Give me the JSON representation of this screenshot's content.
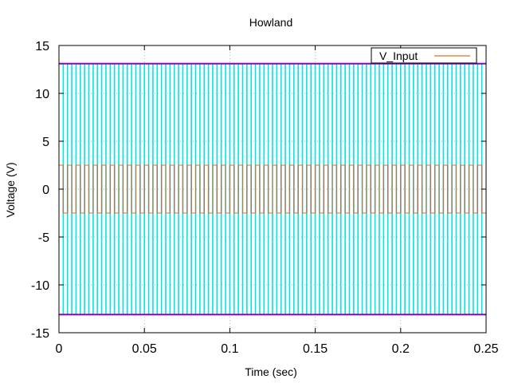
{
  "chart_data": {
    "type": "line",
    "title": "Howland",
    "xlabel": "Time (sec)",
    "ylabel": "Voltage (V)",
    "xlim": [
      0,
      0.25
    ],
    "ylim": [
      -15,
      15
    ],
    "xticks": [
      0,
      0.05,
      0.1,
      0.15,
      0.2,
      0.25
    ],
    "xtick_labels": [
      "0",
      "0.05",
      "0.1",
      "0.15",
      "0.2",
      "0.25"
    ],
    "yticks": [
      -15,
      -10,
      -5,
      0,
      5,
      10,
      15
    ],
    "ytick_labels": [
      "-15",
      "-10",
      "-5",
      "0",
      "5",
      "10",
      "15"
    ],
    "grid": true,
    "legend": {
      "position": "top-right",
      "entries": [
        "V_Input"
      ]
    },
    "series": [
      {
        "name": "V_Input",
        "color": "#e07020",
        "style": "square-wave",
        "amplitude": 2.5,
        "period": 0.005,
        "x_range": [
          0,
          0.25
        ]
      },
      {
        "color": "#00e5e5",
        "style": "square-wave",
        "amplitude": 13.1,
        "period": 0.005,
        "x_range": [
          0.0,
          0.25
        ]
      },
      {
        "color": "#0040ff",
        "style": "square-wave",
        "amplitude": 2.5,
        "period": 0.005,
        "x_range": [
          0,
          0.25
        ]
      },
      {
        "color": "#9000d0",
        "style": "rail",
        "values": [
          13.1,
          -13.1
        ],
        "x_range": [
          0,
          0.25
        ]
      }
    ]
  }
}
